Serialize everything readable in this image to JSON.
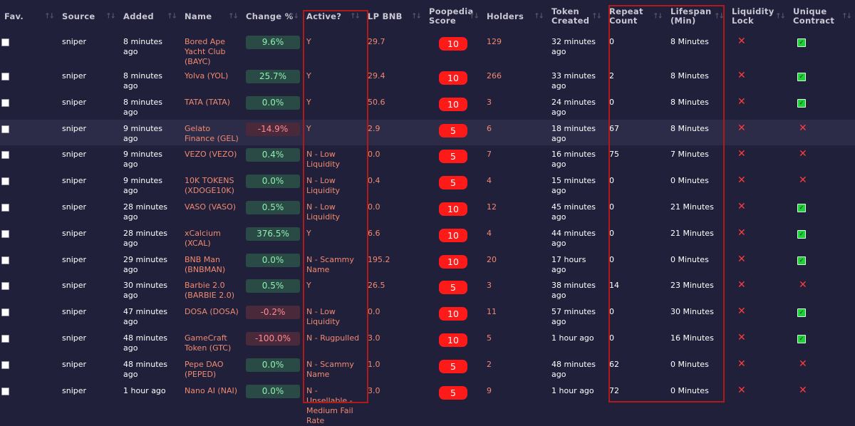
{
  "columns": [
    {
      "label": "Fav."
    },
    {
      "label": "Source"
    },
    {
      "label": "Added"
    },
    {
      "label": "Name"
    },
    {
      "label": "Change %"
    },
    {
      "label": "Active?"
    },
    {
      "label": "LP BNB"
    },
    {
      "label": "Poopedia Score"
    },
    {
      "label": "Holders"
    },
    {
      "label": "Token Created"
    },
    {
      "label": "Repeat Count"
    },
    {
      "label": "Lifespan (Min)"
    },
    {
      "label": "Liquidity Lock"
    },
    {
      "label": "Unique Contract"
    }
  ],
  "sort_glyph": "↑↓",
  "rows": [
    {
      "source": "sniper",
      "added": "8 minutes ago",
      "name": "Bored Ape Yacht Club (BAYC)",
      "change": "9.6%",
      "change_sign": "pos",
      "active": "Y",
      "lp": "29.7",
      "score": "10",
      "holders": "129",
      "created": "32 minutes ago",
      "repeat": "0",
      "lifespan": "8 Minutes",
      "liq_lock": "x-icon",
      "unique": "check-icon"
    },
    {
      "source": "sniper",
      "added": "8 minutes ago",
      "name": "Yolva (YOL)",
      "change": "25.7%",
      "change_sign": "pos",
      "active": "Y",
      "lp": "29.4",
      "score": "10",
      "holders": "266",
      "created": "33 minutes ago",
      "repeat": "2",
      "lifespan": "8 Minutes",
      "liq_lock": "x-icon",
      "unique": "check-icon"
    },
    {
      "source": "sniper",
      "added": "8 minutes ago",
      "name": "TATA (TATA)",
      "change": "0.0%",
      "change_sign": "pos",
      "active": "Y",
      "lp": "50.6",
      "score": "10",
      "holders": "3",
      "created": "24 minutes ago",
      "repeat": "0",
      "lifespan": "8 Minutes",
      "liq_lock": "x-icon",
      "unique": "check-icon"
    },
    {
      "source": "sniper",
      "added": "9 minutes ago",
      "name": "Gelato Finance (GEL)",
      "change": "-14.9%",
      "change_sign": "neg",
      "active": "Y",
      "lp": "2.9",
      "score": "5",
      "holders": "6",
      "created": "18 minutes ago",
      "repeat": "67",
      "lifespan": "8 Minutes",
      "liq_lock": "x-icon",
      "unique": "x-icon"
    },
    {
      "source": "sniper",
      "added": "9 minutes ago",
      "name": "VEZO (VEZO)",
      "change": "0.4%",
      "change_sign": "pos",
      "active": "N - Low Liquidity",
      "lp": "0.0",
      "score": "5",
      "holders": "7",
      "created": "16 minutes ago",
      "repeat": "75",
      "lifespan": "7 Minutes",
      "liq_lock": "x-icon",
      "unique": "x-icon"
    },
    {
      "source": "sniper",
      "added": "9 minutes ago",
      "name": "10K TOKENS (XDOGE10K)",
      "change": "0.0%",
      "change_sign": "pos",
      "active": "N - Low Liquidity",
      "lp": "0.4",
      "score": "5",
      "holders": "4",
      "created": "15 minutes ago",
      "repeat": "0",
      "lifespan": "0 Minutes",
      "liq_lock": "x-icon",
      "unique": "x-icon"
    },
    {
      "source": "sniper",
      "added": "28 minutes ago",
      "name": "VASO (VASO)",
      "change": "0.5%",
      "change_sign": "pos",
      "active": "N - Low Liquidity",
      "lp": "0.0",
      "score": "10",
      "holders": "12",
      "created": "45 minutes ago",
      "repeat": "0",
      "lifespan": "21 Minutes",
      "liq_lock": "x-icon",
      "unique": "check-icon"
    },
    {
      "source": "sniper",
      "added": "28 minutes ago",
      "name": "xCalcium (XCAL)",
      "change": "376.5%",
      "change_sign": "pos",
      "active": "Y",
      "lp": "6.6",
      "score": "10",
      "holders": "4",
      "created": "44 minutes ago",
      "repeat": "0",
      "lifespan": "21 Minutes",
      "liq_lock": "x-icon",
      "unique": "check-icon"
    },
    {
      "source": "sniper",
      "added": "29 minutes ago",
      "name": "BNB Man (BNBMAN)",
      "change": "0.0%",
      "change_sign": "pos",
      "active": "N - Scammy Name",
      "lp": "195.2",
      "score": "10",
      "holders": "20",
      "created": "17 hours ago",
      "repeat": "0",
      "lifespan": "0 Minutes",
      "liq_lock": "x-icon",
      "unique": "check-icon"
    },
    {
      "source": "sniper",
      "added": "30 minutes ago",
      "name": "Barbie 2.0 (BARBIE 2.0)",
      "change": "0.5%",
      "change_sign": "pos",
      "active": "Y",
      "lp": "26.5",
      "score": "5",
      "holders": "3",
      "created": "38 minutes ago",
      "repeat": "14",
      "lifespan": "23 Minutes",
      "liq_lock": "x-icon",
      "unique": "x-icon"
    },
    {
      "source": "sniper",
      "added": "47 minutes ago",
      "name": "DOSA (DOSA)",
      "change": "-0.2%",
      "change_sign": "neg",
      "active": "N - Low Liquidity",
      "lp": "0.0",
      "score": "10",
      "holders": "11",
      "created": "57 minutes ago",
      "repeat": "0",
      "lifespan": "30 Minutes",
      "liq_lock": "x-icon",
      "unique": "check-icon"
    },
    {
      "source": "sniper",
      "added": "48 minutes ago",
      "name": "GameCraft Token (GTC)",
      "change": "-100.0%",
      "change_sign": "neg",
      "active": "N - Rugpulled",
      "lp": "3.0",
      "score": "10",
      "holders": "5",
      "created": "1 hour ago",
      "repeat": "0",
      "lifespan": "16 Minutes",
      "liq_lock": "x-icon",
      "unique": "check-icon"
    },
    {
      "source": "sniper",
      "added": "48 minutes ago",
      "name": "Pepe DAO (PEPED)",
      "change": "0.0%",
      "change_sign": "pos",
      "active": "N - Scammy Name",
      "lp": "1.0",
      "score": "5",
      "holders": "2",
      "created": "48 minutes ago",
      "repeat": "62",
      "lifespan": "0 Minutes",
      "liq_lock": "x-icon",
      "unique": "x-icon"
    },
    {
      "source": "sniper",
      "added": "1 hour ago",
      "name": "Nano AI (NAI)",
      "change": "0.0%",
      "change_sign": "pos",
      "active": "N - Unsellable - Medium Fail Rate",
      "lp": "3.0",
      "score": "5",
      "holders": "9",
      "created": "1 hour ago",
      "repeat": "72",
      "lifespan": "0 Minutes",
      "liq_lock": "x-icon",
      "unique": "x-icon"
    }
  ],
  "colors": {
    "background": "#21203a",
    "accent_text": "#f08a72",
    "score_badge": "#ff1a1a",
    "positive_change": "#8ff0b2",
    "negative_change": "#ff8a94",
    "highlight_box": "#b11a1a"
  }
}
